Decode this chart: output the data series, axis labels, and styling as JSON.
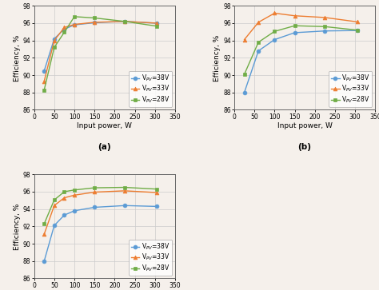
{
  "subplot_a": {
    "x_38": [
      25,
      50,
      75,
      100,
      150,
      225,
      305
    ],
    "y_38": [
      90.5,
      94.2,
      95.3,
      95.8,
      96.05,
      96.2,
      96.0
    ],
    "x_33": [
      25,
      50,
      75,
      100,
      150,
      225,
      305
    ],
    "y_33": [
      89.3,
      94.0,
      95.5,
      95.85,
      96.1,
      96.2,
      96.0
    ],
    "x_28": [
      25,
      50,
      75,
      100,
      150,
      225,
      305
    ],
    "y_28": [
      88.3,
      93.2,
      94.95,
      96.75,
      96.6,
      96.2,
      95.65
    ]
  },
  "subplot_b": {
    "x_38": [
      25,
      60,
      100,
      150,
      225,
      305
    ],
    "y_38": [
      88.0,
      92.8,
      94.1,
      94.9,
      95.1,
      95.15
    ],
    "x_33": [
      25,
      60,
      100,
      150,
      225,
      305
    ],
    "y_33": [
      94.1,
      96.1,
      97.15,
      96.85,
      96.65,
      96.15
    ],
    "x_28": [
      25,
      60,
      100,
      150,
      225,
      305
    ],
    "y_28": [
      90.1,
      93.8,
      95.05,
      95.7,
      95.6,
      95.2
    ]
  },
  "subplot_c": {
    "x_38": [
      25,
      50,
      75,
      100,
      150,
      225,
      305
    ],
    "y_38": [
      88.0,
      92.1,
      93.3,
      93.8,
      94.2,
      94.4,
      94.3
    ],
    "x_33": [
      25,
      50,
      75,
      100,
      150,
      225,
      305
    ],
    "y_33": [
      91.1,
      94.4,
      95.3,
      95.6,
      95.95,
      96.1,
      95.9
    ],
    "x_28": [
      25,
      50,
      75,
      100,
      150,
      225,
      305
    ],
    "y_28": [
      92.3,
      95.05,
      96.0,
      96.2,
      96.45,
      96.5,
      96.3
    ]
  },
  "color_38": "#5b9bd5",
  "color_33": "#ed7d31",
  "color_28": "#70ad47",
  "marker_38": "o",
  "marker_33": "^",
  "marker_28": "s",
  "xlabel": "Input power, W",
  "ylabel": "Efficiency, %",
  "ylim": [
    86,
    98
  ],
  "xlim": [
    0,
    340
  ],
  "xticks": [
    0,
    50,
    100,
    150,
    200,
    250,
    300,
    350
  ],
  "yticks": [
    86,
    88,
    90,
    92,
    94,
    96,
    98
  ],
  "legend_38": "V$_{PV}$=38V",
  "legend_33": "V$_{PV}$=33V",
  "legend_28": "V$_{PV}$=28V",
  "grid_color": "#cccccc",
  "label_fontsize": 6.5,
  "tick_fontsize": 5.5,
  "legend_fontsize": 5.5,
  "marker_size": 3.5,
  "line_width": 1.0,
  "sublabel_fontsize": 7.5,
  "bg_color": "#f5f0eb"
}
